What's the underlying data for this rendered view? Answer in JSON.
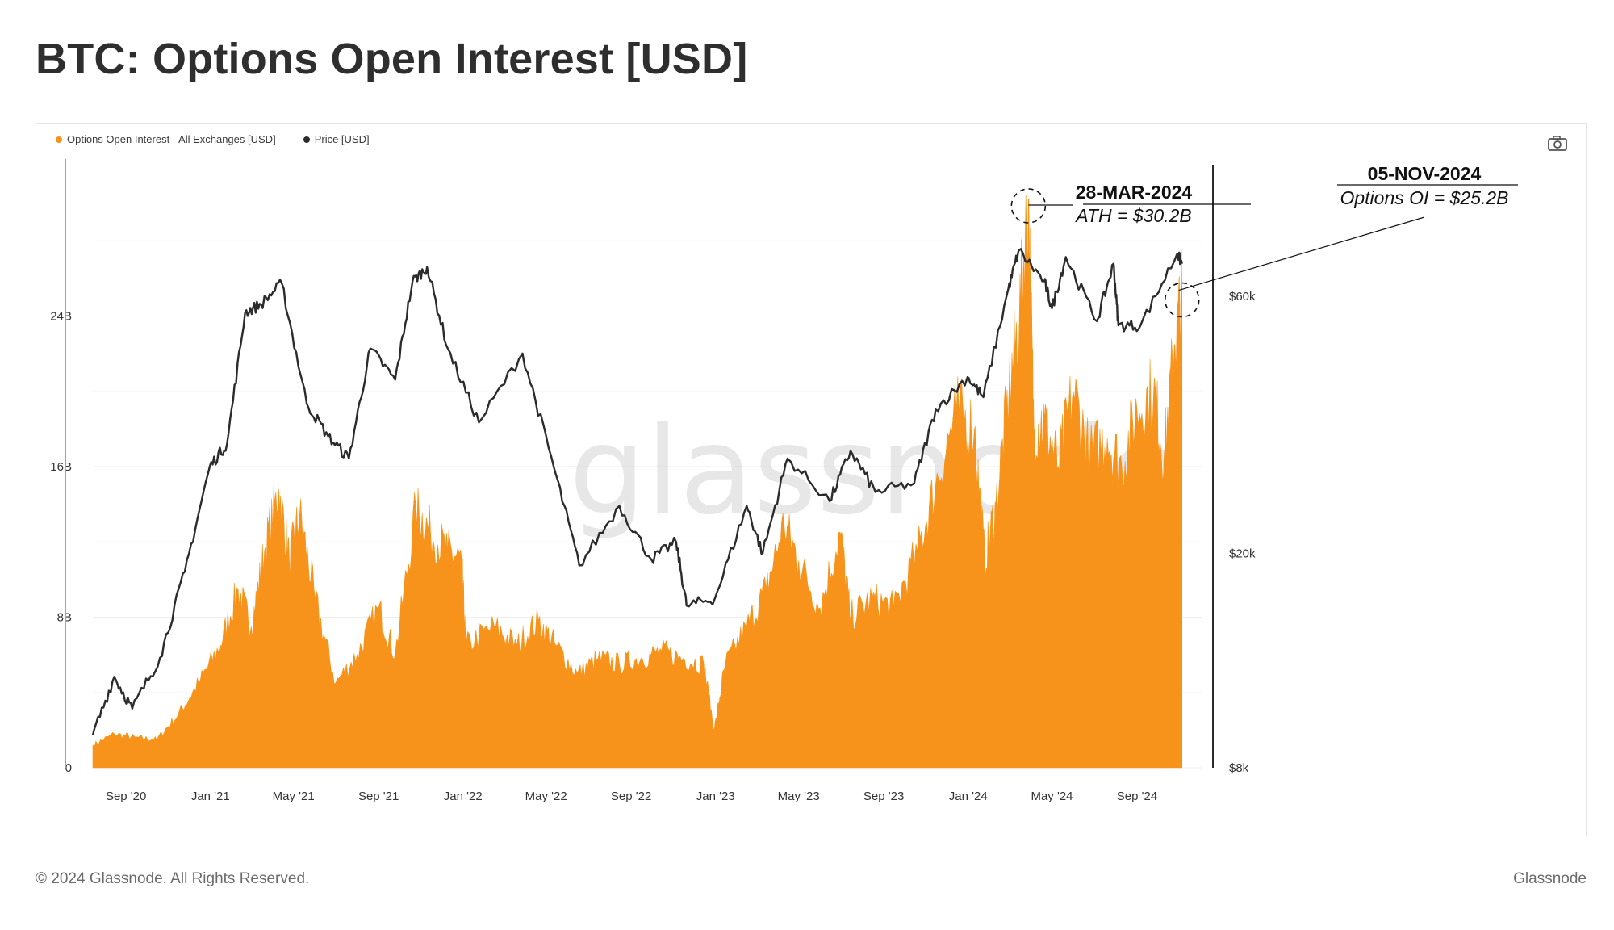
{
  "title": "BTC: Options Open Interest [USD]",
  "footer": {
    "copyright": "© 2024 Glassnode. All Rights Reserved.",
    "brand": "Glassnode"
  },
  "watermark": "glassnode",
  "icons": {
    "camera": "camera-icon"
  },
  "legend": [
    {
      "label": "Options Open Interest - All Exchanges [USD]",
      "color": "#f7931a"
    },
    {
      "label": "Price [USD]",
      "color": "#2b2b2b"
    }
  ],
  "chart_data": {
    "type": "area",
    "x_ticks": [
      "Sep '20",
      "Jan '21",
      "May '21",
      "Sep '21",
      "Jan '22",
      "May '22",
      "Sep '22",
      "Jan '23",
      "May '23",
      "Sep '23",
      "Jan '24",
      "May '24",
      "Sep '24"
    ],
    "x_range": [
      "2020-07-15",
      "2024-11-10"
    ],
    "y_left": {
      "ticks": [
        "0",
        "8B",
        "16B",
        "24B"
      ],
      "tick_values": [
        0,
        8,
        16,
        24
      ],
      "range": [
        0,
        32
      ],
      "unit": "USD billions"
    },
    "y_right": {
      "scale": "log",
      "ticks": [
        "$8k",
        "$20k",
        "$60k"
      ],
      "tick_values": [
        8000,
        20000,
        60000
      ],
      "range": [
        8000,
        105000
      ]
    },
    "grid": true,
    "legend_placement": "top-left",
    "series": [
      {
        "name": "Options Open Interest - All Exchanges [USD]",
        "color": "#f7931a",
        "axis": "left",
        "unit": "USD billions",
        "points": [
          [
            "2020-07-15",
            1.2
          ],
          [
            "2020-08-15",
            1.8
          ],
          [
            "2020-09-15",
            1.6
          ],
          [
            "2020-10-15",
            1.5
          ],
          [
            "2020-11-15",
            2.8
          ],
          [
            "2020-12-15",
            4.5
          ],
          [
            "2021-01-15",
            6.5
          ],
          [
            "2021-02-10",
            9.5
          ],
          [
            "2021-03-01",
            7.5
          ],
          [
            "2021-03-20",
            11.5
          ],
          [
            "2021-04-10",
            14.8
          ],
          [
            "2021-04-25",
            11.0
          ],
          [
            "2021-05-10",
            13.5
          ],
          [
            "2021-06-01",
            9.0
          ],
          [
            "2021-07-01",
            4.5
          ],
          [
            "2021-08-01",
            6.0
          ],
          [
            "2021-09-01",
            8.5
          ],
          [
            "2021-09-25",
            6.0
          ],
          [
            "2021-10-25",
            13.8
          ],
          [
            "2021-11-15",
            12.5
          ],
          [
            "2021-12-10",
            11.5
          ],
          [
            "2021-12-30",
            11.0
          ],
          [
            "2022-01-05",
            6.5
          ],
          [
            "2022-02-15",
            7.5
          ],
          [
            "2022-03-20",
            6.5
          ],
          [
            "2022-04-20",
            7.8
          ],
          [
            "2022-05-15",
            6.5
          ],
          [
            "2022-06-15",
            5.0
          ],
          [
            "2022-07-15",
            5.8
          ],
          [
            "2022-08-15",
            5.5
          ],
          [
            "2022-09-15",
            5.8
          ],
          [
            "2022-10-15",
            6.2
          ],
          [
            "2022-11-15",
            5.8
          ],
          [
            "2022-12-15",
            5.5
          ],
          [
            "2022-12-30",
            2.0
          ],
          [
            "2023-01-15",
            5.5
          ],
          [
            "2023-02-15",
            7.5
          ],
          [
            "2023-03-15",
            9.5
          ],
          [
            "2023-04-10",
            13.0
          ],
          [
            "2023-05-01",
            11.0
          ],
          [
            "2023-06-01",
            8.5
          ],
          [
            "2023-06-30",
            12.5
          ],
          [
            "2023-07-15",
            8.0
          ],
          [
            "2023-08-15",
            9.0
          ],
          [
            "2023-09-15",
            8.5
          ],
          [
            "2023-10-20",
            11.5
          ],
          [
            "2023-11-15",
            15.0
          ],
          [
            "2023-12-15",
            19.0
          ],
          [
            "2024-01-10",
            18.0
          ],
          [
            "2024-01-25",
            11.0
          ],
          [
            "2024-02-10",
            14.0
          ],
          [
            "2024-02-29",
            20.0
          ],
          [
            "2024-03-15",
            24.0
          ],
          [
            "2024-03-28",
            30.2
          ],
          [
            "2024-04-05",
            18.0
          ],
          [
            "2024-04-20",
            18.5
          ],
          [
            "2024-05-10",
            16.0
          ],
          [
            "2024-06-01",
            20.0
          ],
          [
            "2024-06-25",
            16.5
          ],
          [
            "2024-07-20",
            17.5
          ],
          [
            "2024-08-10",
            16.0
          ],
          [
            "2024-09-01",
            19.0
          ],
          [
            "2024-09-25",
            20.0
          ],
          [
            "2024-10-10",
            16.5
          ],
          [
            "2024-10-25",
            22.5
          ],
          [
            "2024-11-05",
            25.2
          ]
        ]
      },
      {
        "name": "Price [USD]",
        "color": "#2b2b2b",
        "axis": "right",
        "unit": "USD",
        "points": [
          [
            "2020-07-15",
            9200
          ],
          [
            "2020-08-15",
            11800
          ],
          [
            "2020-09-10",
            10300
          ],
          [
            "2020-10-20",
            12800
          ],
          [
            "2020-11-25",
            18500
          ],
          [
            "2020-12-31",
            29000
          ],
          [
            "2021-01-25",
            32000
          ],
          [
            "2021-02-20",
            56000
          ],
          [
            "2021-03-15",
            58000
          ],
          [
            "2021-04-14",
            63500
          ],
          [
            "2021-05-20",
            38000
          ],
          [
            "2021-06-20",
            33000
          ],
          [
            "2021-07-20",
            30000
          ],
          [
            "2021-08-20",
            48000
          ],
          [
            "2021-09-25",
            42000
          ],
          [
            "2021-10-20",
            64000
          ],
          [
            "2021-11-10",
            68000
          ],
          [
            "2021-12-10",
            48000
          ],
          [
            "2022-01-24",
            35000
          ],
          [
            "2022-03-28",
            47000
          ],
          [
            "2022-05-12",
            29000
          ],
          [
            "2022-06-18",
            19000
          ],
          [
            "2022-08-15",
            24500
          ],
          [
            "2022-09-30",
            19500
          ],
          [
            "2022-11-05",
            21000
          ],
          [
            "2022-11-20",
            16000
          ],
          [
            "2022-12-31",
            16500
          ],
          [
            "2023-02-15",
            24500
          ],
          [
            "2023-03-10",
            20000
          ],
          [
            "2023-04-15",
            30000
          ],
          [
            "2023-06-15",
            25000
          ],
          [
            "2023-07-15",
            31000
          ],
          [
            "2023-08-20",
            26000
          ],
          [
            "2023-10-15",
            27000
          ],
          [
            "2023-11-15",
            37000
          ],
          [
            "2023-12-31",
            42500
          ],
          [
            "2024-01-23",
            39000
          ],
          [
            "2024-02-28",
            62000
          ],
          [
            "2024-03-14",
            73000
          ],
          [
            "2024-04-20",
            64000
          ],
          [
            "2024-05-01",
            57000
          ],
          [
            "2024-05-21",
            71000
          ],
          [
            "2024-07-05",
            54000
          ],
          [
            "2024-07-29",
            69000
          ],
          [
            "2024-08-05",
            53000
          ],
          [
            "2024-09-06",
            53000
          ],
          [
            "2024-10-29",
            72000
          ],
          [
            "2024-11-05",
            69000
          ]
        ]
      }
    ],
    "annotations": [
      {
        "date": "28-MAR-2024",
        "text": "ATH = $30.2B",
        "x": "2024-03-28",
        "y": 30.2
      },
      {
        "date": "05-NOV-2024",
        "text": "Options OI = $25.2B",
        "x": "2024-11-05",
        "y": 25.2
      }
    ]
  }
}
